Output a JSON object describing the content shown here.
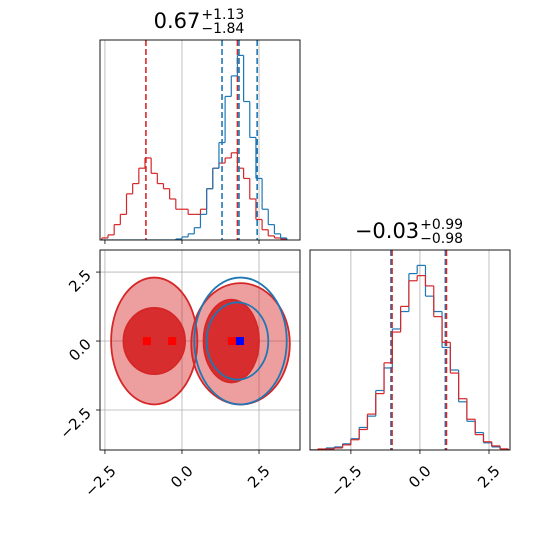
{
  "chart_data": [
    {
      "type": "histogram",
      "title": "0.67",
      "title_upper": "+1.13",
      "title_lower": "−1.84",
      "bins": [
        -2.6,
        -2.4,
        -2.2,
        -2.0,
        -1.8,
        -1.6,
        -1.4,
        -1.2,
        -1.0,
        -0.8,
        -0.6,
        -0.4,
        -0.2,
        0,
        0.2,
        0.4,
        0.6,
        0.8,
        1.0,
        1.2,
        1.4,
        1.6,
        1.8,
        2.0,
        2.2,
        2.4,
        2.6,
        2.8,
        3.0,
        3.2,
        3.4
      ],
      "series": [
        {
          "color": "#d62728",
          "values": [
            2,
            5,
            15,
            25,
            45,
            55,
            70,
            80,
            65,
            55,
            50,
            40,
            30,
            30,
            25,
            25,
            30,
            50,
            70,
            75,
            80,
            85,
            70,
            60,
            40,
            20,
            10,
            4,
            2,
            1
          ],
          "quantiles": [
            -1.17,
            1.8
          ]
        },
        {
          "color": "#1f77b4",
          "values": [
            0,
            0,
            0,
            0,
            0,
            0,
            0,
            0,
            0,
            0,
            0,
            0,
            1,
            3,
            6,
            12,
            25,
            50,
            70,
            95,
            140,
            160,
            180,
            135,
            100,
            60,
            30,
            15,
            6,
            2
          ],
          "quantiles": [
            1.3,
            1.85,
            2.44
          ]
        }
      ],
      "xlim": [
        -2.66,
        3.83
      ],
      "ylim": [
        0,
        195
      ],
      "xticks": [
        -2.5,
        0,
        2.5
      ],
      "grid": true
    },
    {
      "type": "contour",
      "series": [
        {
          "color": "#d62728",
          "filled": true,
          "levels": [
            [
              [
                -0.9,
                0.0,
                1.4,
                2.3
              ],
              [
                1.9,
                -0.1,
                1.6,
                2.2
              ]
            ],
            [
              [
                -0.9,
                0.0,
                1.0,
                1.2
              ],
              [
                1.6,
                0.0,
                0.9,
                1.5
              ]
            ]
          ]
        },
        {
          "color": "#1f77b4",
          "filled": false,
          "levels": [
            [
              [
                1.9,
                0.0,
                1.5,
                2.3
              ]
            ],
            [
              [
                1.8,
                0.0,
                1.0,
                1.4
              ]
            ]
          ]
        }
      ],
      "markers": [
        {
          "color": "#ff0000",
          "x": [
            -1.14,
            -0.32,
            1.62
          ],
          "y": [
            0,
            0,
            0
          ]
        },
        {
          "color": "#0000ff",
          "x": [
            1.88
          ],
          "y": [
            0
          ]
        }
      ],
      "xlim": [
        -2.66,
        3.83
      ],
      "ylim": [
        -3.95,
        3.3
      ],
      "xticks": [
        {
          "value": -2.5,
          "label": "−2.5"
        },
        {
          "value": 0,
          "label": "0.0"
        },
        {
          "value": 2.5,
          "label": "2.5"
        }
      ],
      "yticks": [
        {
          "value": -2.5,
          "label": "−2.5"
        },
        {
          "value": 0,
          "label": "0.0"
        },
        {
          "value": 2.5,
          "label": "2.5"
        }
      ],
      "grid": true
    },
    {
      "type": "histogram",
      "title": "−0.03",
      "title_upper": "+0.99",
      "title_lower": "−0.98",
      "bins": [
        -4.0,
        -3.7,
        -3.4,
        -3.1,
        -2.8,
        -2.5,
        -2.2,
        -1.9,
        -1.6,
        -1.3,
        -1.0,
        -0.7,
        -0.4,
        -0.1,
        0.2,
        0.5,
        0.8,
        1.1,
        1.4,
        1.7,
        2.0,
        2.3,
        2.6,
        2.9,
        3.2
      ],
      "series": [
        {
          "color": "#1f77b4",
          "values": [
            0,
            0,
            2,
            3,
            6,
            11,
            22,
            33,
            58,
            80,
            118,
            135,
            172,
            180,
            150,
            135,
            100,
            78,
            47,
            28,
            17,
            7,
            3,
            1
          ],
          "quantiles": [
            -1.05,
            0.92
          ]
        },
        {
          "color": "#d62728",
          "values": [
            0,
            1,
            1,
            2,
            5,
            10,
            20,
            35,
            55,
            85,
            115,
            140,
            165,
            170,
            160,
            130,
            105,
            75,
            50,
            30,
            15,
            8,
            4,
            1
          ],
          "quantiles": [
            -1.01,
            0.96
          ]
        }
      ],
      "xlim": [
        -3.98,
        3.26
      ],
      "ylim": [
        0,
        195
      ],
      "xticks": [
        {
          "value": -2.5,
          "label": "−2.5"
        },
        {
          "value": 0,
          "label": "0.0"
        },
        {
          "value": 2.5,
          "label": "2.5"
        }
      ],
      "grid": true
    }
  ]
}
